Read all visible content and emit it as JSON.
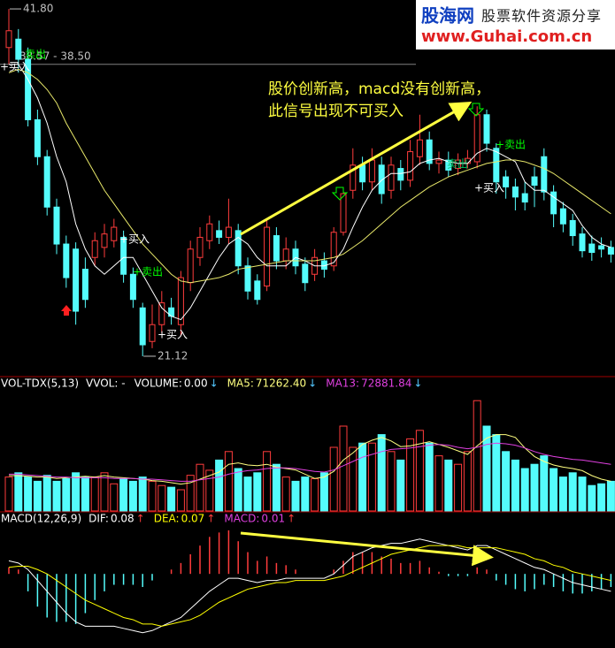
{
  "chart_data": [
    {
      "type": "candlestick",
      "up_color": "#ff3c3c",
      "down_color": "#54fcfc",
      "ylim": [
        19.96,
        42.33
      ],
      "open": [
        39.5,
        40.0,
        38.8,
        35.2,
        33.0,
        30.0,
        27.8,
        27.5,
        26.3,
        27.0,
        27.6,
        28.0,
        28.2,
        26.0,
        24.0,
        22.0,
        23.0,
        24.0,
        23.0,
        25.5,
        27.0,
        28.0,
        28.6,
        28.2,
        28.6,
        26.5,
        25.6,
        25.3,
        28.3,
        26.8,
        27.5,
        26.6,
        26.0,
        26.8,
        26.5,
        28.5,
        31.0,
        32.5,
        31.5,
        32.5,
        31.0,
        32.3,
        31.6,
        33.0,
        34.0,
        32.6,
        32.8,
        32.3,
        32.6,
        32.7,
        35.5,
        33.5,
        31.8,
        31.2,
        30.8,
        31.8,
        33.0,
        30.9,
        29.9,
        29.2,
        28.4,
        27.8,
        27.7,
        27.6
      ],
      "high": [
        41.8,
        40.6,
        39.5,
        35.8,
        33.4,
        30.5,
        28.3,
        27.9,
        27.0,
        28.5,
        29.0,
        29.3,
        28.6,
        26.4,
        24.3,
        24.2,
        25.0,
        24.6,
        26.2,
        28.0,
        28.8,
        29.5,
        29.2,
        30.5,
        29.0,
        27.0,
        26.0,
        29.2,
        28.8,
        28.2,
        28.0,
        27.0,
        27.5,
        27.3,
        28.8,
        31.2,
        33.5,
        33.0,
        33.5,
        33.0,
        33.0,
        32.8,
        34.0,
        35.5,
        34.5,
        33.3,
        33.3,
        33.2,
        33.4,
        36.0,
        35.8,
        33.8,
        32.2,
        31.7,
        31.5,
        32.4,
        33.5,
        31.3,
        30.3,
        29.6,
        28.8,
        28.3,
        28.2,
        28.0
      ],
      "low": [
        38.5,
        38.0,
        34.8,
        32.5,
        29.5,
        27.2,
        25.2,
        23.0,
        24.0,
        26.5,
        27.0,
        27.6,
        25.5,
        24.0,
        21.12,
        21.6,
        22.5,
        23.0,
        22.3,
        25.0,
        26.5,
        27.5,
        27.8,
        27.8,
        26.0,
        24.5,
        24.2,
        25.0,
        26.3,
        26.3,
        26.0,
        25.0,
        25.6,
        25.8,
        26.2,
        28.3,
        30.5,
        31.0,
        31.0,
        30.2,
        30.5,
        31.0,
        31.2,
        32.5,
        32.2,
        32.0,
        31.8,
        31.9,
        32.3,
        32.3,
        33.3,
        30.8,
        30.5,
        29.8,
        29.8,
        30.0,
        30.4,
        28.8,
        28.5,
        27.7,
        27.0,
        26.8,
        27.0,
        26.7
      ],
      "close": [
        40.5,
        38.8,
        35.2,
        33.0,
        30.0,
        27.8,
        25.8,
        23.8,
        24.5,
        28.0,
        28.4,
        28.8,
        26.0,
        24.5,
        21.8,
        23.0,
        24.3,
        23.5,
        25.8,
        27.5,
        28.2,
        29.0,
        28.2,
        28.8,
        26.5,
        25.0,
        24.5,
        28.8,
        26.8,
        27.5,
        26.5,
        25.5,
        27.0,
        26.3,
        28.5,
        30.8,
        32.5,
        31.5,
        32.8,
        30.8,
        32.5,
        31.6,
        33.3,
        34.0,
        32.6,
        32.8,
        32.2,
        32.8,
        32.9,
        35.5,
        33.8,
        31.5,
        31.2,
        30.6,
        30.3,
        31.3,
        30.9,
        29.6,
        29.0,
        28.3,
        27.4,
        27.3,
        27.5,
        27.2
      ],
      "lines": [
        {
          "color": "#ffffff",
          "values": [
            38.5,
            38.5,
            37.6,
            36.5,
            35,
            33,
            31.5,
            29,
            27.5,
            26.5,
            26,
            26.5,
            27,
            27,
            26,
            25,
            24,
            23.5,
            23.3,
            24,
            25,
            26,
            27,
            27.8,
            28.2,
            27.8,
            27,
            26.5,
            26.5,
            26.5,
            27,
            26.8,
            26.5,
            26.5,
            26.7,
            27.5,
            28.8,
            30,
            31,
            31.6,
            32,
            32,
            32.1,
            32.6,
            32.8,
            32.9,
            32.7,
            32.6,
            32.6,
            33.2,
            33.5,
            33.3,
            33,
            32.7,
            31.5,
            31,
            31,
            30.6,
            30.2,
            29.8,
            28.9,
            28.2,
            27.8,
            27.6
          ]
        },
        {
          "color": "#e8e86a",
          "values": [
            38,
            38.2,
            38,
            37.6,
            37,
            36.2,
            35,
            34,
            33,
            32,
            31,
            30.2,
            29.4,
            28.6,
            27.8,
            27.2,
            26.6,
            26,
            25.6,
            25.5,
            25.6,
            25.7,
            25.8,
            26,
            26.3,
            26.4,
            26.5,
            26.6,
            26.7,
            26.8,
            26.8,
            26.8,
            26.8,
            26.9,
            27,
            27.2,
            27.6,
            28,
            28.5,
            29,
            29.5,
            30,
            30.4,
            30.8,
            31.2,
            31.5,
            31.8,
            32,
            32.2,
            32.4,
            32.6,
            32.7,
            32.8,
            32.8,
            32.7,
            32.5,
            32.3,
            32,
            31.6,
            31.2,
            30.8,
            30.4,
            30,
            29.6
          ]
        }
      ],
      "price_labels": [
        {
          "value": 41.8,
          "label": "41.80"
        },
        {
          "value": 21.12,
          "label": "21.12"
        }
      ],
      "price_line": {
        "value": 38.5,
        "label": "38.57 - 38.50"
      },
      "signals": [
        {
          "label": "卖出",
          "color": "#00ff00"
        },
        {
          "label": "+买入",
          "color": "#ffffff"
        },
        {
          "label": "+买入",
          "color": "#ffffff"
        },
        {
          "label": "+卖出",
          "color": "#00ff00"
        },
        {
          "label": "+买入",
          "color": "#ffffff"
        },
        {
          "label": "卖出",
          "color": "#00c060"
        },
        {
          "label": "+卖出",
          "color": "#00ff00"
        },
        {
          "label": "+买入",
          "color": "#ffffff"
        }
      ],
      "annotation": [
        "股价创新高，macd没有创新高，",
        "此信号出现不可买入"
      ]
    },
    {
      "type": "volume",
      "title": "VOL-TDX(5,13)",
      "ylim": [
        0,
        170000
      ],
      "legend": [
        {
          "name": "VVOL: -",
          "color": "#ffffff"
        },
        {
          "name": "VOLUME:",
          "value": 0,
          "label": "0.00",
          "arrow": "↓",
          "color": "#ffffff"
        },
        {
          "name": "MA5:",
          "value": 71262.4,
          "label": "71262.40",
          "arrow": "↓",
          "color": "#ffff80"
        },
        {
          "name": "MA13:",
          "value": 72881.84,
          "label": "72881.84",
          "arrow": "↓",
          "color": "#e040e0"
        }
      ],
      "values": [
        48000,
        54000,
        48000,
        42000,
        50400,
        42000,
        45600,
        54000,
        48000,
        48000,
        54000,
        38400,
        45600,
        42000,
        48000,
        42000,
        36000,
        33600,
        30000,
        50400,
        66000,
        57600,
        72000,
        84000,
        60000,
        48000,
        54000,
        84000,
        66000,
        48000,
        42000,
        48000,
        45600,
        54000,
        90000,
        120000,
        90000,
        96000,
        96000,
        108000,
        84000,
        72000,
        102000,
        114000,
        96000,
        78000,
        72000,
        66000,
        84000,
        156000,
        120000,
        108000,
        84000,
        72000,
        60000,
        66000,
        78000,
        60000,
        48000,
        54000,
        48000,
        36000,
        38400,
        42000
      ],
      "lines": [
        {
          "color": "#ffff80",
          "values": [
            50000,
            50000,
            49000,
            48000,
            48000,
            46000,
            47000,
            48000,
            49000,
            48000,
            50000,
            48000,
            47000,
            46000,
            45000,
            43000,
            42000,
            40000,
            38000,
            40000,
            45000,
            50000,
            55000,
            66000,
            68000,
            65000,
            64000,
            66000,
            62000,
            60000,
            58000,
            52000,
            46000,
            48000,
            56000,
            72000,
            82000,
            94000,
            100000,
            104000,
            99000,
            91000,
            92000,
            95000,
            98000,
            94000,
            90000,
            85000,
            80000,
            92000,
            103000,
            108000,
            108000,
            104000,
            89000,
            77000,
            70000,
            65000,
            62000,
            60000,
            57000,
            50000,
            45000,
            42000
          ]
        },
        {
          "color": "#e040e0",
          "values": [
            52000,
            52000,
            51000,
            50000,
            49000,
            48000,
            48000,
            47000,
            47000,
            47000,
            47000,
            46000,
            46000,
            46000,
            45000,
            45000,
            44000,
            43000,
            42000,
            42000,
            44000,
            46000,
            48000,
            52000,
            55000,
            57000,
            58000,
            60000,
            61000,
            61000,
            60000,
            58000,
            56000,
            55000,
            58000,
            64000,
            70000,
            76000,
            80000,
            84000,
            87000,
            88000,
            89000,
            91000,
            93000,
            94000,
            93000,
            90000,
            88000,
            90000,
            94000,
            96000,
            95000,
            93000,
            89000,
            84000,
            80000,
            77000,
            75000,
            73000,
            72000,
            70000,
            68000,
            66000
          ]
        }
      ]
    },
    {
      "type": "macd",
      "title": "MACD(12,26,9)",
      "ylim": [
        -3.4,
        2.32
      ],
      "legend": [
        {
          "name": "DIF:",
          "value": 0.08,
          "label": "0.08",
          "arrow": "↑",
          "color": "#ffffff"
        },
        {
          "name": "DEA:",
          "value": 0.07,
          "label": "0.07",
          "arrow": "↑",
          "color": "#ffff00"
        },
        {
          "name": "MACD:",
          "value": 0.01,
          "label": "0.01",
          "arrow": "↑",
          "color": "#e040e0"
        }
      ],
      "values": [
        0.3,
        0.2,
        -0.8,
        -1.5,
        -2,
        -2.2,
        -2.2,
        -2.3,
        -1.8,
        -1.2,
        -0.8,
        -0.5,
        -0.5,
        -0.5,
        -0.6,
        -0.3,
        0,
        0.2,
        0.5,
        0.9,
        1.3,
        1.7,
        1.9,
        2.0,
        1.5,
        1.0,
        0.6,
        0.8,
        0.5,
        0.4,
        0.2,
        0,
        0,
        0,
        0.2,
        0.6,
        1.0,
        1.0,
        1.0,
        0.8,
        0.7,
        0.5,
        0.5,
        0.6,
        0.3,
        0.1,
        -0.1,
        -0.1,
        -0.1,
        0.3,
        0.2,
        -0.3,
        -0.5,
        -0.7,
        -0.8,
        -0.7,
        -0.5,
        -0.6,
        -0.8,
        -0.9,
        -0.9,
        -0.8,
        -0.7,
        -0.6
      ],
      "lines": [
        {
          "color": "#ffffff",
          "values": [
            0.6,
            0.5,
            0.2,
            -0.3,
            -0.8,
            -1.3,
            -1.8,
            -2.2,
            -2.4,
            -2.4,
            -2.4,
            -2.4,
            -2.5,
            -2.6,
            -2.7,
            -2.6,
            -2.4,
            -2.2,
            -2.0,
            -1.6,
            -1.2,
            -0.8,
            -0.5,
            -0.2,
            -0.2,
            -0.3,
            -0.4,
            -0.3,
            -0.3,
            -0.2,
            -0.2,
            -0.2,
            -0.2,
            -0.2,
            0,
            0.4,
            0.8,
            1.0,
            1.2,
            1.3,
            1.4,
            1.4,
            1.5,
            1.6,
            1.5,
            1.4,
            1.3,
            1.2,
            1.1,
            1.3,
            1.3,
            1.1,
            0.9,
            0.7,
            0.5,
            0.3,
            0.2,
            0,
            -0.2,
            -0.4,
            -0.5,
            -0.6,
            -0.7,
            -0.8
          ]
        },
        {
          "color": "#ffff00",
          "values": [
            0.3,
            0.35,
            0.35,
            0.2,
            0,
            -0.3,
            -0.6,
            -0.9,
            -1.2,
            -1.4,
            -1.6,
            -1.8,
            -2.0,
            -2.1,
            -2.3,
            -2.3,
            -2.4,
            -2.3,
            -2.2,
            -2.1,
            -1.9,
            -1.6,
            -1.3,
            -1.1,
            -0.9,
            -0.7,
            -0.6,
            -0.5,
            -0.4,
            -0.4,
            -0.3,
            -0.3,
            -0.3,
            -0.3,
            -0.2,
            -0.1,
            0.1,
            0.3,
            0.5,
            0.7,
            0.9,
            1.0,
            1.1,
            1.2,
            1.3,
            1.3,
            1.3,
            1.3,
            1.2,
            1.2,
            1.2,
            1.2,
            1.1,
            1.0,
            0.9,
            0.7,
            0.6,
            0.4,
            0.3,
            0.1,
            0,
            -0.1,
            -0.2,
            -0.3
          ]
        }
      ]
    }
  ],
  "watermark": {
    "logo": "股海网",
    "slogan": "股票软件资源分享",
    "url": "www.Guhai.com.cn"
  }
}
